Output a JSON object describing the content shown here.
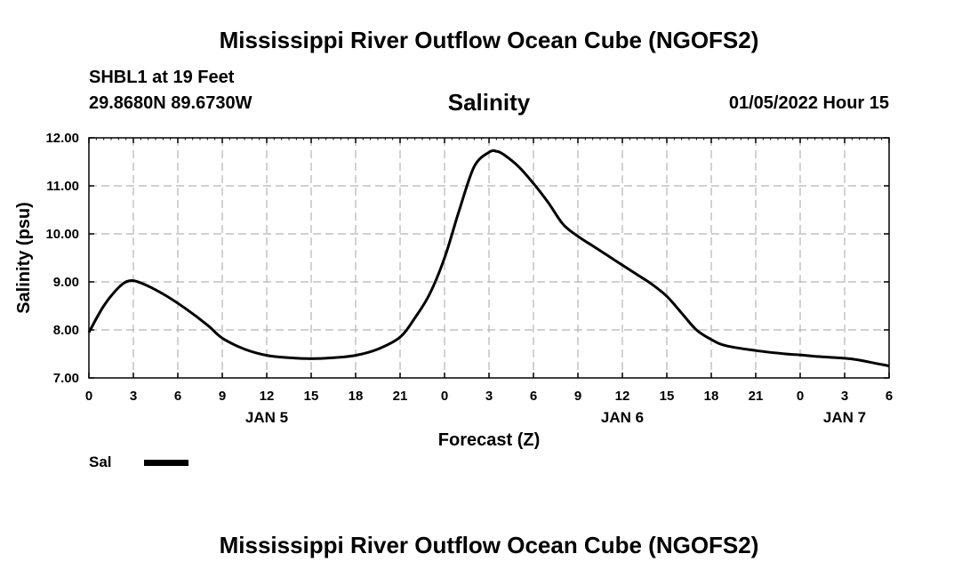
{
  "header": {
    "title": "Mississippi River Outflow Ocean Cube (NGOFS2)",
    "station": "SHBL1 at 19 Feet",
    "coordinates": "29.8680N  89.6730W",
    "chart_title": "Salinity",
    "datetime": "01/05/2022 Hour 15"
  },
  "footer": {
    "title": "Mississippi River Outflow Ocean Cube (NGOFS2)"
  },
  "legend": {
    "label": "Sal",
    "color": "#000000"
  },
  "chart_data": {
    "type": "line",
    "title": "Salinity",
    "xlabel": "Forecast (Z)",
    "ylabel": "Salinity (psu)",
    "xlim": [
      0,
      54
    ],
    "ylim": [
      7.0,
      12.0
    ],
    "x_ticks": [
      0,
      3,
      6,
      9,
      12,
      15,
      18,
      21,
      24,
      27,
      30,
      33,
      36,
      39,
      42,
      45,
      48,
      51,
      54
    ],
    "x_tick_labels": [
      "0",
      "3",
      "6",
      "9",
      "12",
      "15",
      "18",
      "21",
      "0",
      "3",
      "6",
      "9",
      "12",
      "15",
      "18",
      "21",
      "0",
      "3",
      "6"
    ],
    "date_labels": [
      {
        "label": "JAN 5",
        "x": 12
      },
      {
        "label": "JAN 6",
        "x": 36
      },
      {
        "label": "JAN 7",
        "x": 51
      }
    ],
    "y_ticks": [
      7.0,
      8.0,
      9.0,
      10.0,
      11.0,
      12.0
    ],
    "y_tick_labels": [
      "7.00",
      "8.00",
      "9.00",
      "10.00",
      "11.00",
      "12.00"
    ],
    "grid": true,
    "series": [
      {
        "name": "Sal",
        "color": "#000000",
        "x": [
          0,
          1,
          2,
          2.7,
          3.5,
          5,
          6.5,
          8,
          9,
          10.5,
          12,
          13.5,
          15,
          16.5,
          18,
          19.5,
          21,
          22,
          23,
          24,
          25,
          26,
          27,
          27.5,
          28,
          29,
          30,
          31,
          32,
          33,
          34,
          35,
          36,
          37,
          38,
          39,
          40,
          41,
          42,
          43,
          45,
          47,
          48,
          49,
          51,
          52,
          53,
          54
        ],
        "y": [
          7.95,
          8.5,
          8.88,
          9.02,
          8.98,
          8.75,
          8.45,
          8.1,
          7.83,
          7.6,
          7.47,
          7.42,
          7.4,
          7.42,
          7.47,
          7.6,
          7.85,
          8.25,
          8.75,
          9.5,
          10.5,
          11.4,
          11.7,
          11.72,
          11.65,
          11.4,
          11.05,
          10.65,
          10.2,
          9.95,
          9.75,
          9.55,
          9.35,
          9.15,
          8.95,
          8.7,
          8.35,
          8.0,
          7.8,
          7.67,
          7.57,
          7.5,
          7.48,
          7.45,
          7.41,
          7.37,
          7.31,
          7.25
        ]
      }
    ]
  }
}
